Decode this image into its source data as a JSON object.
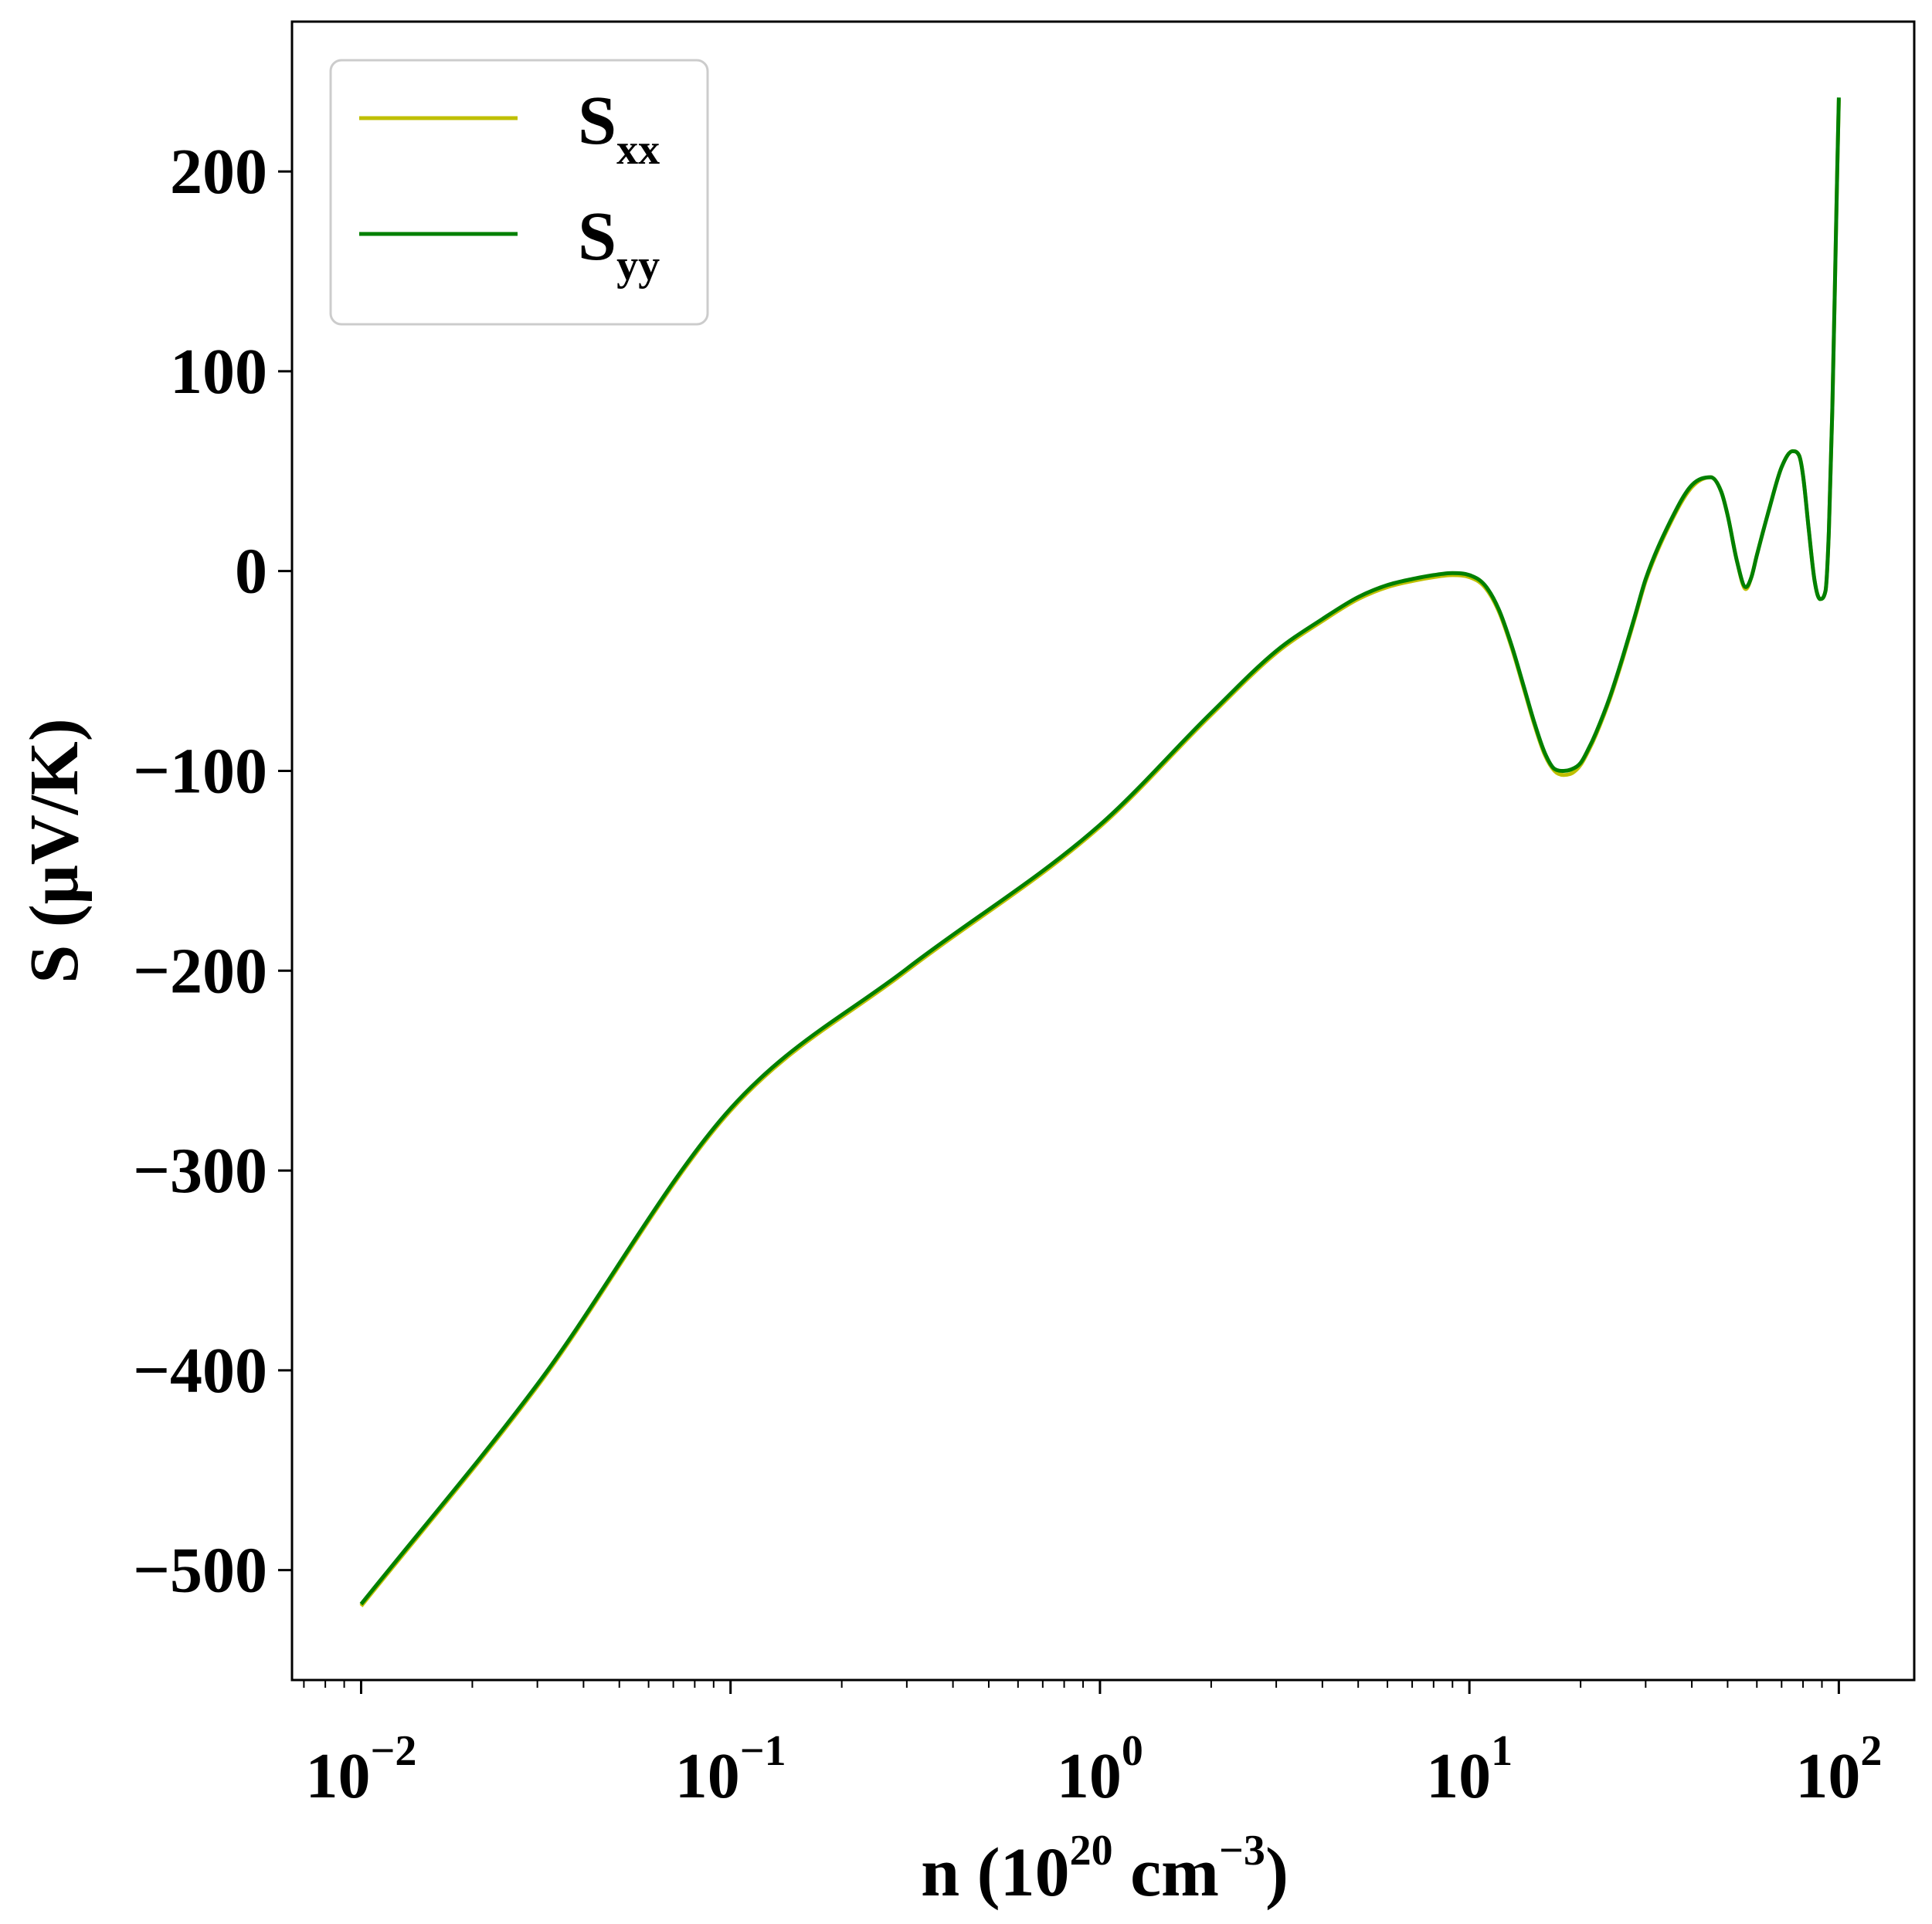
{
  "chart_data": {
    "type": "line",
    "xscale": "log",
    "xlim": [
      0.0065,
      160
    ],
    "ylim": [
      -555,
      275
    ],
    "xticks": [
      {
        "value": 0.01,
        "base": "10",
        "exp": "−2"
      },
      {
        "value": 0.1,
        "base": "10",
        "exp": "−1"
      },
      {
        "value": 1,
        "base": "10",
        "exp": "0"
      },
      {
        "value": 10,
        "base": "10",
        "exp": "1"
      },
      {
        "value": 100,
        "base": "10",
        "exp": "2"
      }
    ],
    "yticks": [
      {
        "value": 200,
        "label": "200"
      },
      {
        "value": 100,
        "label": "100"
      },
      {
        "value": 0,
        "label": "0"
      },
      {
        "value": -100,
        "label": "−100"
      },
      {
        "value": -200,
        "label": "−200"
      },
      {
        "value": -300,
        "label": "−300"
      },
      {
        "value": -400,
        "label": "−400"
      },
      {
        "value": -500,
        "label": "−500"
      }
    ],
    "xlabel": {
      "pre": "n (10",
      "sup1": "20",
      "mid": " cm",
      "sup2": "−3",
      "post": ")"
    },
    "ylabel": "S (μV/K)",
    "legend_position": "top-left",
    "grid": false,
    "series": [
      {
        "name_base": "S",
        "name_sub": "xx",
        "color": "#bfbf00",
        "x": [
          0.01,
          0.03,
          0.1,
          0.3,
          1,
          2,
          3,
          4,
          5,
          6,
          7,
          8,
          9,
          10,
          11,
          12,
          13,
          14,
          15,
          16,
          17,
          18,
          19,
          20,
          21,
          22,
          24,
          26,
          28,
          30,
          35,
          40,
          45,
          48,
          50,
          53,
          56,
          58,
          60,
          65,
          70,
          75,
          78,
          80,
          83,
          86,
          89,
          92,
          94,
          96,
          98,
          99,
          100
        ],
        "y": [
          -518,
          -408,
          -270,
          -200,
          -128,
          -72,
          -41,
          -25,
          -14,
          -8,
          -5,
          -3,
          -2,
          -3,
          -8,
          -20,
          -38,
          -58,
          -77,
          -92,
          -100,
          -102,
          -101,
          -97,
          -90,
          -82,
          -64,
          -44,
          -24,
          -5,
          24,
          42,
          47,
          40,
          28,
          5,
          -9,
          -3,
          8,
          32,
          52,
          60,
          58,
          48,
          20,
          -5,
          -14,
          -10,
          20,
          80,
          160,
          200,
          236
        ]
      },
      {
        "name_base": "S",
        "name_sub": "yy",
        "color": "#008000",
        "x": [
          0.01,
          0.03,
          0.1,
          0.3,
          1,
          2,
          3,
          4,
          5,
          6,
          7,
          8,
          9,
          10,
          11,
          12,
          13,
          14,
          15,
          16,
          17,
          18,
          19,
          20,
          21,
          22,
          24,
          26,
          28,
          30,
          35,
          40,
          45,
          48,
          50,
          53,
          56,
          58,
          60,
          65,
          70,
          75,
          78,
          80,
          83,
          86,
          89,
          92,
          94,
          96,
          98,
          99,
          100
        ],
        "y": [
          -517,
          -407,
          -269,
          -199,
          -127,
          -71,
          -40,
          -24,
          -13,
          -7,
          -4,
          -2,
          -1,
          -2,
          -7,
          -19,
          -37,
          -57,
          -76,
          -91,
          -99,
          -100,
          -99,
          -96,
          -89,
          -81,
          -63,
          -43,
          -23,
          -4,
          25,
          43,
          47,
          40,
          28,
          5,
          -8,
          -3,
          8,
          32,
          52,
          60,
          58,
          48,
          20,
          -5,
          -14,
          -10,
          20,
          80,
          160,
          200,
          237
        ]
      }
    ]
  }
}
